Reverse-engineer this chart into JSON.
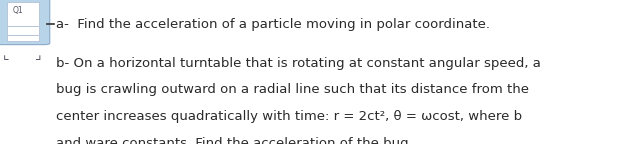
{
  "line_a": "a-  Find the acceleration of a particle moving in polar coordinate.",
  "line_b1": "b- On a horizontal turntable that is rotating at constant angular speed, a",
  "line_b2": "bug is crawling outward on a radial line such that its distance from the",
  "line_b3": "center increases quadratically with time: r = 2ct², θ = ωcost, where b",
  "line_b4": "and ware constants. Find the acceleration of the bug.",
  "bg_color": "#ffffff",
  "text_color": "#2a2a2a",
  "font_size": 9.5,
  "icon_label": "Q1",
  "icon_bg": "#b8d4e8",
  "icon_inner_bg": "#ddeeff",
  "icon_edge": "#8aaac8"
}
